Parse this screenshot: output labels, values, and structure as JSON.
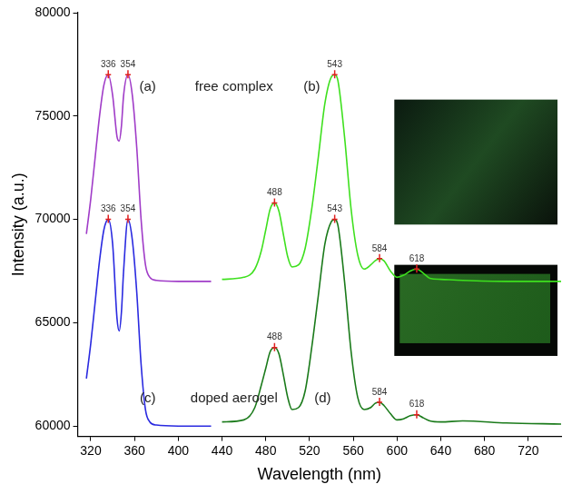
{
  "chart_data": {
    "type": "line",
    "x_label": "Wavelength (nm)",
    "y_label": "Intensity (a.u.)",
    "xlim": [
      308,
      750
    ],
    "ylim": [
      59500,
      80000
    ],
    "xticks": [
      320,
      360,
      400,
      440,
      480,
      520,
      560,
      600,
      640,
      680,
      720
    ],
    "yticks": [
      60000,
      65000,
      70000,
      75000,
      80000
    ],
    "grid": false,
    "series": [
      {
        "color": "#a03cc8",
        "x": [
          316,
          320,
          324,
          328,
          332,
          336,
          340,
          344,
          346,
          348,
          350,
          354,
          358,
          362,
          366,
          370,
          374,
          380,
          400,
          430
        ],
        "values": [
          69300,
          71000,
          73000,
          75000,
          76500,
          77000,
          76000,
          74000,
          73800,
          74500,
          76000,
          77000,
          76000,
          73500,
          70000,
          67800,
          67200,
          67050,
          67000,
          67000
        ],
        "peak_labels": [
          336,
          354
        ]
      },
      {
        "color": "#3ee01e",
        "x": [
          440,
          460,
          470,
          476,
          480,
          484,
          488,
          492,
          496,
          500,
          504,
          510,
          516,
          522,
          528,
          534,
          540,
          543,
          546,
          552,
          558,
          564,
          570,
          576,
          580,
          584,
          588,
          594,
          600,
          606,
          612,
          618,
          624,
          630,
          640,
          660,
          700,
          750
        ],
        "values": [
          67100,
          67200,
          67600,
          68500,
          69500,
          70500,
          70800,
          70400,
          69300,
          68200,
          67700,
          67800,
          68600,
          70500,
          73000,
          75600,
          76900,
          77000,
          76700,
          74000,
          70500,
          68300,
          67600,
          67800,
          68000,
          68100,
          68000,
          67500,
          67200,
          67300,
          67500,
          67600,
          67400,
          67150,
          67100,
          67050,
          67000,
          67000
        ],
        "peak_labels": [
          488,
          543,
          584,
          618
        ]
      },
      {
        "color": "#2a2ae0",
        "x": [
          316,
          320,
          324,
          328,
          332,
          336,
          340,
          344,
          346,
          348,
          350,
          354,
          358,
          362,
          366,
          370,
          374,
          380,
          400,
          430
        ],
        "values": [
          62300,
          64000,
          66000,
          68000,
          69500,
          70000,
          68800,
          65200,
          64600,
          65500,
          67500,
          70000,
          69000,
          66500,
          63000,
          60800,
          60200,
          60050,
          60000,
          60000
        ],
        "peak_labels": [
          336,
          354
        ]
      },
      {
        "color": "#1a7a1a",
        "x": [
          440,
          460,
          470,
          476,
          480,
          484,
          488,
          492,
          496,
          500,
          504,
          510,
          516,
          522,
          528,
          534,
          540,
          543,
          546,
          552,
          558,
          564,
          570,
          576,
          580,
          584,
          588,
          594,
          600,
          606,
          612,
          618,
          624,
          630,
          640,
          660,
          700,
          750
        ],
        "values": [
          60200,
          60300,
          60900,
          62000,
          62800,
          63600,
          63800,
          63500,
          62500,
          61400,
          60800,
          60900,
          61700,
          63800,
          66300,
          68800,
          69900,
          70000,
          69700,
          67000,
          63600,
          61400,
          60800,
          60900,
          61100,
          61150,
          61000,
          60600,
          60300,
          60350,
          60500,
          60550,
          60400,
          60250,
          60200,
          60250,
          60150,
          60100
        ],
        "peak_labels": [
          488,
          543,
          584,
          618
        ]
      }
    ],
    "annotations": [
      {
        "text": "(a)",
        "x": 372,
        "y": 76400
      },
      {
        "text": "free complex",
        "x": 451,
        "y": 76400
      },
      {
        "text": "(b)",
        "x": 522,
        "y": 76400
      },
      {
        "text": "(c)",
        "x": 372,
        "y": 61340
      },
      {
        "text": "doped aerogel",
        "x": 451,
        "y": 61340
      },
      {
        "text": "(d)",
        "x": 532,
        "y": 61340
      }
    ]
  }
}
